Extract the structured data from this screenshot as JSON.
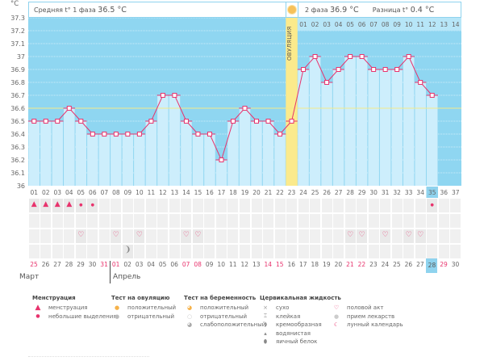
{
  "unit_label": "°C",
  "header": {
    "phase1_label": "Средняя t° 1 фаза",
    "phase1_value": "36.5 °C",
    "phase2_label": "2 фаза",
    "phase2_value": "36.9 °C",
    "diff_label": "Разница t°",
    "diff_value": "0.4 °C",
    "ovulation_label": "ОВУЛЯЦИЯ"
  },
  "colors": {
    "sky": "#8fd6f1",
    "bar": "#cdeefc",
    "line": "#e8336d",
    "coverline": "#f3e98a",
    "ovulation": "#fbea8c",
    "today": "#8fd3ee",
    "red_date": "#e8336d"
  },
  "chart_data": {
    "type": "line",
    "title": "",
    "xlabel": "",
    "ylabel": "°C",
    "ylim": [
      36.0,
      37.3
    ],
    "yticks": [
      "36",
      "36.1",
      "36.2",
      "36.3",
      "36.4",
      "36.5",
      "36.6",
      "36.7",
      "36.8",
      "36.9",
      "37",
      "37.1",
      "37.2",
      "37.3"
    ],
    "categories": [
      "01",
      "02",
      "03",
      "04",
      "05",
      "06",
      "07",
      "08",
      "09",
      "10",
      "11",
      "12",
      "13",
      "14",
      "15",
      "16",
      "17",
      "18",
      "19",
      "20",
      "21",
      "22",
      "23",
      "24",
      "25",
      "26",
      "27",
      "28",
      "29",
      "30",
      "31",
      "32",
      "33",
      "34",
      "35",
      "36",
      "37"
    ],
    "values": [
      36.5,
      36.5,
      36.5,
      36.6,
      36.5,
      36.4,
      36.4,
      36.4,
      36.4,
      36.4,
      36.5,
      36.7,
      36.7,
      36.5,
      36.4,
      36.4,
      36.2,
      36.5,
      36.6,
      36.5,
      36.5,
      36.4,
      36.5,
      36.9,
      37.0,
      36.8,
      36.9,
      37.0,
      37.0,
      36.9,
      36.9,
      36.9,
      37.0,
      36.8,
      36.7,
      null,
      null
    ],
    "coverline": 36.6,
    "ovulation_day": 23,
    "current_day": 35,
    "phase2_day_labels": [
      "01",
      "02",
      "03",
      "04",
      "05",
      "06",
      "07",
      "08",
      "09",
      "10",
      "11",
      "12",
      "13",
      "14"
    ],
    "grid": true
  },
  "symptoms": {
    "menstruation": {
      "heavy_days": [
        1,
        2,
        3,
        4
      ],
      "light_days": [
        5,
        6,
        35
      ]
    },
    "intercourse_days": [
      5,
      8,
      10,
      14,
      15,
      28,
      29,
      31,
      33,
      34
    ],
    "medication_days": [
      9
    ]
  },
  "calendar": {
    "dates": [
      {
        "d": "25",
        "red": true
      },
      {
        "d": "26"
      },
      {
        "d": "27"
      },
      {
        "d": "28"
      },
      {
        "d": "29"
      },
      {
        "d": "30"
      },
      {
        "d": "31",
        "red": true
      },
      {
        "d": "01",
        "red": true
      },
      {
        "d": "02"
      },
      {
        "d": "03"
      },
      {
        "d": "04"
      },
      {
        "d": "05"
      },
      {
        "d": "06"
      },
      {
        "d": "07",
        "red": true
      },
      {
        "d": "08",
        "red": true
      },
      {
        "d": "09"
      },
      {
        "d": "10"
      },
      {
        "d": "11"
      },
      {
        "d": "12"
      },
      {
        "d": "13"
      },
      {
        "d": "14",
        "red": true
      },
      {
        "d": "15",
        "red": true
      },
      {
        "d": "16"
      },
      {
        "d": "17"
      },
      {
        "d": "18"
      },
      {
        "d": "19"
      },
      {
        "d": "20"
      },
      {
        "d": "21",
        "red": true
      },
      {
        "d": "22",
        "red": true
      },
      {
        "d": "23"
      },
      {
        "d": "24"
      },
      {
        "d": "25"
      },
      {
        "d": "26"
      },
      {
        "d": "27"
      },
      {
        "d": "28",
        "today": true
      },
      {
        "d": "29",
        "red": true
      },
      {
        "d": "30"
      }
    ],
    "month1": "Март",
    "month2": "Апрель"
  },
  "legend": {
    "menstruation": {
      "title": "Менструация",
      "items": [
        "менструация",
        "небольшие выделения"
      ]
    },
    "ovulation_test": {
      "title": "Тест на овуляцию",
      "items": [
        "положительный",
        "отрицательный"
      ]
    },
    "pregnancy_test": {
      "title": "Тест на беременность",
      "items": [
        "положительный",
        "отрицательный",
        "слабоположительный"
      ]
    },
    "cervical_fluid": {
      "title": "Цервикальная жидкость",
      "items": [
        "сухо",
        "клейкая",
        "кремообразная",
        "водянистая",
        "яичный белок"
      ]
    },
    "other": {
      "items": [
        "половой акт",
        "прием лекарств",
        "лунный календарь"
      ]
    }
  }
}
